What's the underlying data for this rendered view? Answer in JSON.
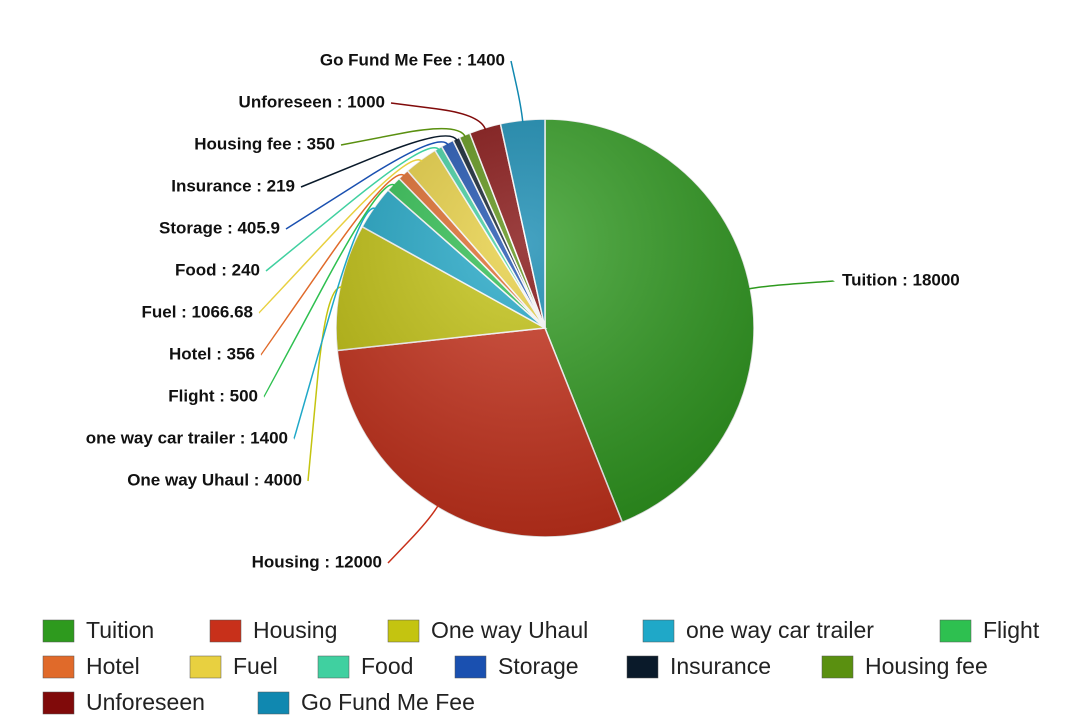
{
  "chart_data": {
    "type": "pie",
    "categories": [
      "Tuition",
      "Housing",
      "One way Uhaul",
      "one way car trailer",
      "Flight",
      "Hotel",
      "Fuel",
      "Food",
      "Storage",
      "Insurance",
      "Housing fee",
      "Unforeseen",
      "Go Fund Me Fee"
    ],
    "values": [
      18000,
      12000,
      4000,
      1400,
      500,
      356,
      1066.68,
      240,
      405.9,
      219,
      350,
      1000,
      1400
    ],
    "value_labels": [
      "Tuition : 18000",
      "Housing : 12000",
      "One way Uhaul : 4000",
      "one way car trailer : 1400",
      "Flight : 500",
      "Hotel : 356",
      "Fuel : 1066.68",
      "Food : 240",
      "Storage : 405.9",
      "Insurance : 219",
      "Housing fee : 350",
      "Unforeseen : 1000",
      "Go Fund Me Fee : 1400"
    ],
    "colors": [
      "#2e9a1e",
      "#c8301a",
      "#c4c410",
      "#1fa8c8",
      "#2ec050",
      "#e06a2a",
      "#e8d040",
      "#40d0a0",
      "#1a50b0",
      "#0a1a2a",
      "#5a9010",
      "#800a0a",
      "#1088b0"
    ]
  }
}
